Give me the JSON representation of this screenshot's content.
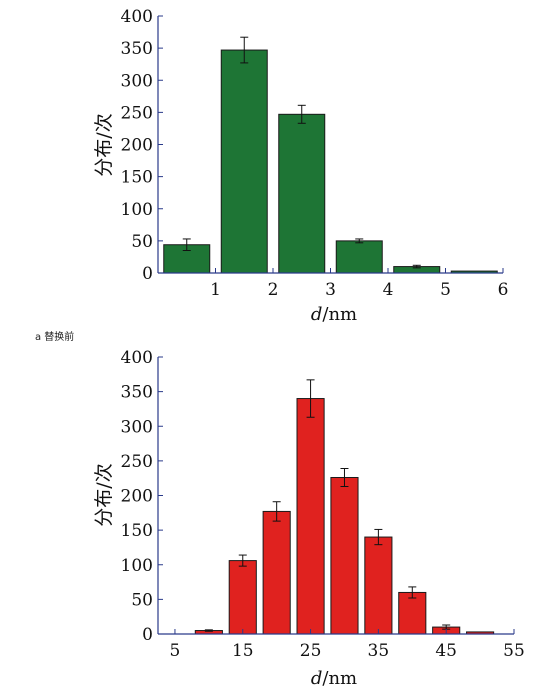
{
  "chart_data": [
    {
      "type": "bar",
      "xlabel_italic": "d",
      "xlabel_unit": "/nm",
      "ylabel": "分布/次",
      "ylim": [
        0,
        400
      ],
      "yticks": [
        0,
        50,
        100,
        150,
        200,
        250,
        300,
        350,
        400
      ],
      "xlim": [
        0,
        6
      ],
      "xticks": [
        1,
        2,
        3,
        4,
        5,
        6
      ],
      "bar_width": 0.8,
      "color": "#1e7535",
      "x": [
        0.5,
        1.5,
        2.5,
        3.5,
        4.5,
        5.5
      ],
      "values": [
        44,
        347,
        247,
        50,
        10,
        3
      ],
      "errors": [
        9,
        20,
        14,
        3,
        2,
        0
      ],
      "caption": "a 替换前"
    },
    {
      "type": "bar",
      "xlabel_italic": "d",
      "xlabel_unit": "/nm",
      "ylabel": "分布/次",
      "ylim": [
        0,
        400
      ],
      "yticks": [
        0,
        50,
        100,
        150,
        200,
        250,
        300,
        350,
        400
      ],
      "xlim": [
        2.5,
        55
      ],
      "xticks": [
        5,
        15,
        25,
        35,
        45,
        55
      ],
      "bar_width": 4,
      "color": "#e0221f",
      "x": [
        10,
        15,
        20,
        25,
        30,
        35,
        40,
        45,
        50
      ],
      "values": [
        5,
        106,
        177,
        340,
        226,
        140,
        60,
        10,
        3
      ],
      "errors": [
        1,
        8,
        14,
        27,
        13,
        11,
        8,
        3,
        0
      ]
    }
  ]
}
